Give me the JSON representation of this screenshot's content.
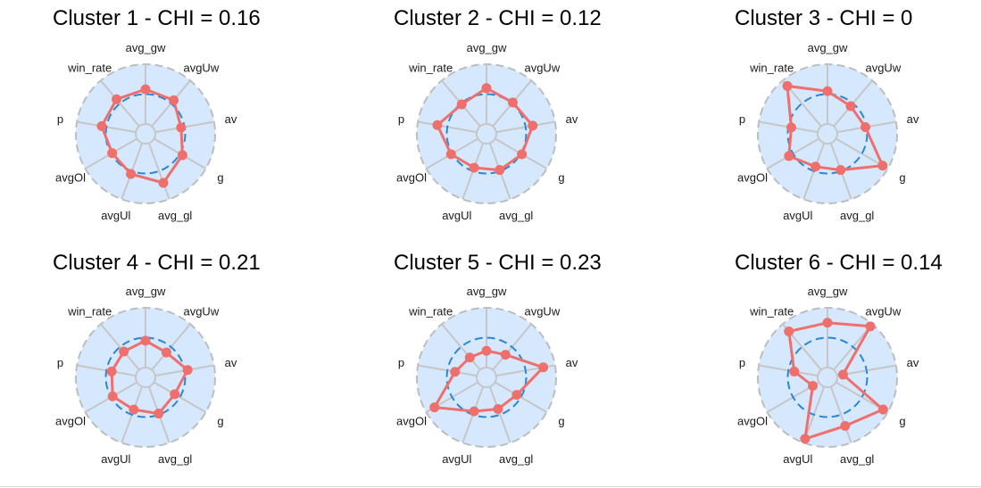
{
  "chart_data": [
    {
      "type": "radar",
      "title": "Cluster 1 - CHI = 0.16",
      "axes": [
        "avg_gw",
        "avgUw",
        "av",
        "g",
        "avg_gl",
        "avgUl",
        "avgOl",
        "p",
        "win_rate"
      ],
      "values": [
        0.58,
        0.57,
        0.44,
        0.55,
        0.71,
        0.55,
        0.48,
        0.58,
        0.59
      ],
      "reference_value": 0.5,
      "range": [
        0,
        1
      ]
    },
    {
      "type": "radar",
      "title": "Cluster 2 - CHI = 0.12",
      "axes": [
        "avg_gw",
        "avgUw",
        "av",
        "g",
        "avg_gl",
        "avgUl",
        "avgOl",
        "p",
        "win_rate"
      ],
      "values": [
        0.6,
        0.52,
        0.62,
        0.52,
        0.48,
        0.44,
        0.52,
        0.67,
        0.48
      ],
      "reference_value": 0.5,
      "range": [
        0,
        1
      ]
    },
    {
      "type": "radar",
      "title": "Cluster 3 - CHI = 0",
      "axes": [
        "avg_gw",
        "avgUw",
        "av",
        "g",
        "avg_gl",
        "avgUl",
        "avgOl",
        "p",
        "win_rate"
      ],
      "values": [
        0.55,
        0.44,
        0.48,
        0.9,
        0.48,
        0.42,
        0.58,
        0.45,
        0.88
      ],
      "reference_value": 0.5,
      "range": [
        0,
        1
      ]
    },
    {
      "type": "radar",
      "title": "Cluster 4 - CHI = 0.21",
      "axes": [
        "avg_gw",
        "avgUw",
        "av",
        "g",
        "avg_gl",
        "avgUl",
        "avgOl",
        "p",
        "win_rate"
      ],
      "values": [
        0.45,
        0.38,
        0.55,
        0.4,
        0.48,
        0.41,
        0.47,
        0.41,
        0.4
      ],
      "reference_value": 0.5,
      "range": [
        0,
        1
      ]
    },
    {
      "type": "radar",
      "title": "Cluster 5 - CHI = 0.23",
      "axes": [
        "avg_gw",
        "avgUw",
        "av",
        "g",
        "avg_gl",
        "avgUl",
        "avgOl",
        "p",
        "win_rate"
      ],
      "values": [
        0.28,
        0.33,
        0.8,
        0.42,
        0.4,
        0.44,
        0.84,
        0.37,
        0.27
      ],
      "reference_value": 0.5,
      "range": [
        0,
        1
      ]
    },
    {
      "type": "radar",
      "title": "Cluster 6 - CHI = 0.14",
      "axes": [
        "avg_gw",
        "avgUw",
        "av",
        "g",
        "avg_gl",
        "avgUl",
        "avgOl",
        "p",
        "win_rate"
      ],
      "values": [
        0.75,
        0.95,
        0.1,
        0.91,
        0.7,
        0.93,
        0.12,
        0.4,
        0.84
      ],
      "reference_value": 0.5,
      "range": [
        0,
        1
      ]
    }
  ],
  "colors": {
    "disc_fill": "#d6e8fd",
    "disc_border": "#bdbdbd",
    "spoke": "#c6c6c6",
    "reference_circle": "#2a86d6",
    "series": "#ef6f6c"
  }
}
